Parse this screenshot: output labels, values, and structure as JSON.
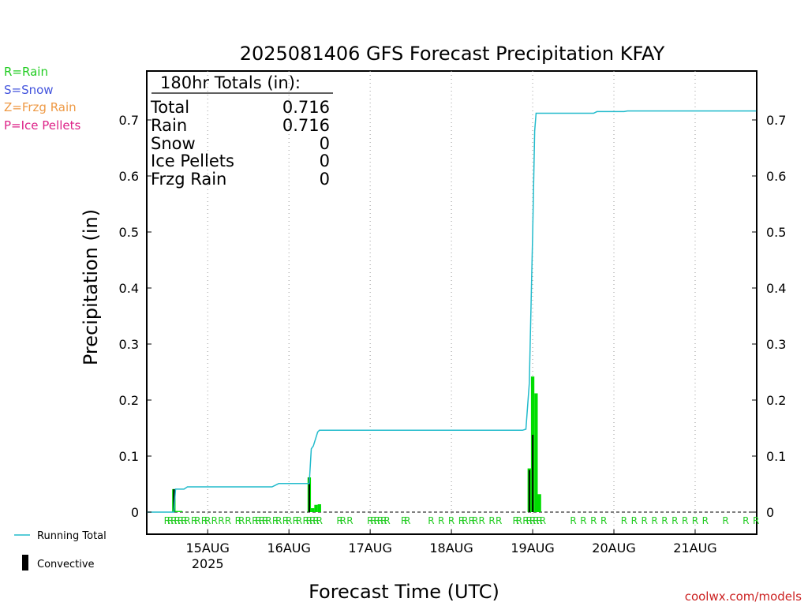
{
  "chart_data": {
    "type": "bar",
    "title": "2025081406 GFS Forecast Precipitation KFAY",
    "ylabel": "Precipitation (in)",
    "xlabel": "Forecast Time (UTC)",
    "credit": "coolwx.com/models",
    "ylim": [
      0,
      0.79
    ],
    "xlim_hours": [
      0,
      180
    ],
    "y_ticks": [
      "0",
      "0.1",
      "0.2",
      "0.3",
      "0.4",
      "0.5",
      "0.6",
      "0.7"
    ],
    "y_tick_values": [
      0,
      0.1,
      0.2,
      0.3,
      0.4,
      0.5,
      0.6,
      0.7
    ],
    "x_ticks": [
      {
        "label": "15AUG",
        "hour": 18,
        "sub": "2025"
      },
      {
        "label": "16AUG",
        "hour": 42,
        "sub": ""
      },
      {
        "label": "17AUG",
        "hour": 66,
        "sub": ""
      },
      {
        "label": "18AUG",
        "hour": 90,
        "sub": ""
      },
      {
        "label": "19AUG",
        "hour": 114,
        "sub": ""
      },
      {
        "label": "20AUG",
        "hour": 138,
        "sub": ""
      },
      {
        "label": "21AUG",
        "hour": 162,
        "sub": ""
      }
    ],
    "grid": "vertical dotted",
    "legend_types": [
      {
        "label": "R=Rain",
        "color": "#22cc22"
      },
      {
        "label": "S=Snow",
        "color": "#4455dd"
      },
      {
        "label": "Z=Frzg Rain",
        "color": "#ee9944"
      },
      {
        "label": "P=Ice Pellets",
        "color": "#dd2288"
      }
    ],
    "legend_series": [
      {
        "label": "Running Total",
        "color": "#22bbcc"
      },
      {
        "label": "Convective",
        "color": "#000000"
      }
    ],
    "totals_box": {
      "header": "180hr Totals (in):",
      "rows": [
        {
          "label": "Total",
          "value": "0.716"
        },
        {
          "label": "Rain",
          "value": "0.716"
        },
        {
          "label": "Snow",
          "value": "0"
        },
        {
          "label": "Ice Pellets",
          "value": "0"
        },
        {
          "label": "Frzg Rain",
          "value": "0"
        }
      ]
    },
    "running_total": [
      [
        0,
        0
      ],
      [
        8,
        0
      ],
      [
        8.5,
        0.041
      ],
      [
        11,
        0.041
      ],
      [
        12,
        0.045
      ],
      [
        37,
        0.045
      ],
      [
        38,
        0.048
      ],
      [
        39,
        0.051
      ],
      [
        48,
        0.051
      ],
      [
        48.6,
        0.113
      ],
      [
        49.2,
        0.118
      ],
      [
        50.5,
        0.143
      ],
      [
        51,
        0.146
      ],
      [
        111,
        0.146
      ],
      [
        112,
        0.148
      ],
      [
        113,
        0.23
      ],
      [
        114,
        0.5
      ],
      [
        114.6,
        0.68
      ],
      [
        115,
        0.712
      ],
      [
        132,
        0.712
      ],
      [
        133,
        0.715
      ],
      [
        141,
        0.715
      ],
      [
        142,
        0.716
      ],
      [
        180,
        0.716
      ]
    ],
    "bars": [
      {
        "hour": 8,
        "total": 0.041,
        "convective": 0.041
      },
      {
        "hour": 9,
        "total": 0.002,
        "convective": 0.0
      },
      {
        "hour": 10,
        "total": 0.002,
        "convective": 0.0
      },
      {
        "hour": 48,
        "total": 0.062,
        "convective": 0.062
      },
      {
        "hour": 49,
        "total": 0.007,
        "convective": 0.0
      },
      {
        "hour": 50,
        "total": 0.013,
        "convective": 0.0
      },
      {
        "hour": 51,
        "total": 0.014,
        "convective": 0.0
      },
      {
        "hour": 113,
        "total": 0.078,
        "convective": 0.075
      },
      {
        "hour": 114,
        "total": 0.242,
        "convective": 0.138
      },
      {
        "hour": 115,
        "total": 0.212,
        "convective": 0.0
      },
      {
        "hour": 116,
        "total": 0.032,
        "convective": 0.0
      }
    ],
    "ptype_markers": [
      {
        "hour": 6,
        "type": "R"
      },
      {
        "hour": 7,
        "type": "R"
      },
      {
        "hour": 8,
        "type": "R"
      },
      {
        "hour": 9,
        "type": "R"
      },
      {
        "hour": 10,
        "type": "R"
      },
      {
        "hour": 11,
        "type": "R"
      },
      {
        "hour": 12,
        "type": "R"
      },
      {
        "hour": 14,
        "type": "R"
      },
      {
        "hour": 15,
        "type": "R"
      },
      {
        "hour": 17,
        "type": "R"
      },
      {
        "hour": 18,
        "type": "R"
      },
      {
        "hour": 20,
        "type": "R"
      },
      {
        "hour": 22,
        "type": "R"
      },
      {
        "hour": 24,
        "type": "R"
      },
      {
        "hour": 27,
        "type": "R"
      },
      {
        "hour": 28,
        "type": "R"
      },
      {
        "hour": 30,
        "type": "R"
      },
      {
        "hour": 32,
        "type": "R"
      },
      {
        "hour": 33,
        "type": "R"
      },
      {
        "hour": 34,
        "type": "R"
      },
      {
        "hour": 35,
        "type": "R"
      },
      {
        "hour": 36,
        "type": "R"
      },
      {
        "hour": 38,
        "type": "R"
      },
      {
        "hour": 39,
        "type": "R"
      },
      {
        "hour": 41,
        "type": "R"
      },
      {
        "hour": 42,
        "type": "R"
      },
      {
        "hour": 44,
        "type": "R"
      },
      {
        "hour": 45,
        "type": "R"
      },
      {
        "hour": 47,
        "type": "R"
      },
      {
        "hour": 48,
        "type": "R"
      },
      {
        "hour": 49,
        "type": "R"
      },
      {
        "hour": 50,
        "type": "R"
      },
      {
        "hour": 51,
        "type": "R"
      },
      {
        "hour": 57,
        "type": "R"
      },
      {
        "hour": 58,
        "type": "R"
      },
      {
        "hour": 60,
        "type": "R"
      },
      {
        "hour": 66,
        "type": "R"
      },
      {
        "hour": 67,
        "type": "R"
      },
      {
        "hour": 68,
        "type": "R"
      },
      {
        "hour": 69,
        "type": "R"
      },
      {
        "hour": 70,
        "type": "R"
      },
      {
        "hour": 71,
        "type": "R"
      },
      {
        "hour": 76,
        "type": "R"
      },
      {
        "hour": 77,
        "type": "R"
      },
      {
        "hour": 84,
        "type": "R"
      },
      {
        "hour": 87,
        "type": "R"
      },
      {
        "hour": 90,
        "type": "R"
      },
      {
        "hour": 93,
        "type": "R"
      },
      {
        "hour": 94,
        "type": "R"
      },
      {
        "hour": 96,
        "type": "R"
      },
      {
        "hour": 97,
        "type": "R"
      },
      {
        "hour": 99,
        "type": "R"
      },
      {
        "hour": 102,
        "type": "R"
      },
      {
        "hour": 104,
        "type": "R"
      },
      {
        "hour": 109,
        "type": "R"
      },
      {
        "hour": 110,
        "type": "R"
      },
      {
        "hour": 112,
        "type": "R"
      },
      {
        "hour": 113,
        "type": "R"
      },
      {
        "hour": 114,
        "type": "R"
      },
      {
        "hour": 115,
        "type": "R"
      },
      {
        "hour": 116,
        "type": "R"
      },
      {
        "hour": 117,
        "type": "R"
      },
      {
        "hour": 126,
        "type": "R"
      },
      {
        "hour": 129,
        "type": "R"
      },
      {
        "hour": 132,
        "type": "R"
      },
      {
        "hour": 135,
        "type": "R"
      },
      {
        "hour": 141,
        "type": "R"
      },
      {
        "hour": 144,
        "type": "R"
      },
      {
        "hour": 147,
        "type": "R"
      },
      {
        "hour": 150,
        "type": "R"
      },
      {
        "hour": 153,
        "type": "R"
      },
      {
        "hour": 156,
        "type": "R"
      },
      {
        "hour": 159,
        "type": "R"
      },
      {
        "hour": 162,
        "type": "R"
      },
      {
        "hour": 165,
        "type": "R"
      },
      {
        "hour": 171,
        "type": "R"
      },
      {
        "hour": 177,
        "type": "R"
      },
      {
        "hour": 180,
        "type": "R"
      }
    ]
  }
}
